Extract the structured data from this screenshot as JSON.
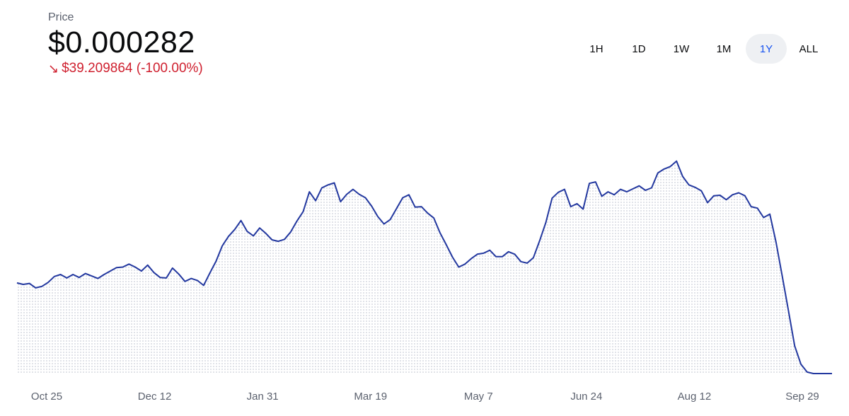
{
  "header": {
    "label": "Price",
    "price": "$0.000282",
    "change_arrow": "↘",
    "change_text": "$39.209864 (-100.00%)",
    "change_color": "#cf202f"
  },
  "ranges": [
    {
      "label": "1H",
      "active": false
    },
    {
      "label": "1D",
      "active": false
    },
    {
      "label": "1W",
      "active": false
    },
    {
      "label": "1M",
      "active": false
    },
    {
      "label": "1Y",
      "active": true
    },
    {
      "label": "ALL",
      "active": false
    }
  ],
  "colors": {
    "line": "#23389f",
    "fill_dot": "#c9cdd8",
    "accent": "#1652f0"
  },
  "chart_data": {
    "type": "line",
    "title": "",
    "xlabel": "",
    "ylabel": "",
    "grid": false,
    "x_ticks": [
      "Oct 25",
      "Dec 12",
      "Jan 31",
      "Mar 19",
      "May 7",
      "Jun 24",
      "Aug 12",
      "Sep 29"
    ],
    "ylim": [
      0,
      50
    ],
    "series": [
      {
        "values": [
          18.3,
          18,
          18.2,
          17.3,
          17.6,
          18.4,
          19.6,
          20,
          19.3,
          20,
          19.4,
          20.2,
          19.7,
          19.2,
          20,
          20.7,
          21.4,
          21.5,
          22.1,
          21.5,
          20.7,
          21.9,
          20.4,
          19.4,
          19.3,
          21.3,
          20.1,
          18.6,
          19.2,
          18.8,
          17.8,
          20.3,
          22.7,
          25.8,
          27.7,
          29.1,
          30.9,
          28.7,
          27.8,
          29.4,
          28.3,
          27,
          26.7,
          27.1,
          28.6,
          30.8,
          32.7,
          36.7,
          34.9,
          37.5,
          38.1,
          38.5,
          34.7,
          36.2,
          37.2,
          36.2,
          35.5,
          33.8,
          31.7,
          30.2,
          31.1,
          33.3,
          35.5,
          36.1,
          33.6,
          33.7,
          32.4,
          31.4,
          28.4,
          26,
          23.5,
          21.5,
          22.1,
          23.2,
          24.1,
          24.3,
          24.9,
          23.6,
          23.6,
          24.6,
          24.1,
          22.6,
          22.3,
          23.4,
          26.8,
          30.5,
          35.4,
          36.6,
          37.2,
          33.7,
          34.3,
          33.2,
          38.4,
          38.7,
          35.8,
          36.7,
          36.1,
          37.2,
          36.7,
          37.3,
          37.9,
          37,
          37.5,
          40.5,
          41.3,
          41.8,
          42.9,
          39.8,
          38.1,
          37.6,
          36.9,
          34.5,
          35.9,
          36,
          35.1,
          36.1,
          36.5,
          35.9,
          33.7,
          33.4,
          31.5,
          32.2,
          26.5,
          19.7,
          12.7,
          5.6,
          1.9,
          0.3,
          0,
          0,
          0,
          0
        ]
      }
    ]
  }
}
